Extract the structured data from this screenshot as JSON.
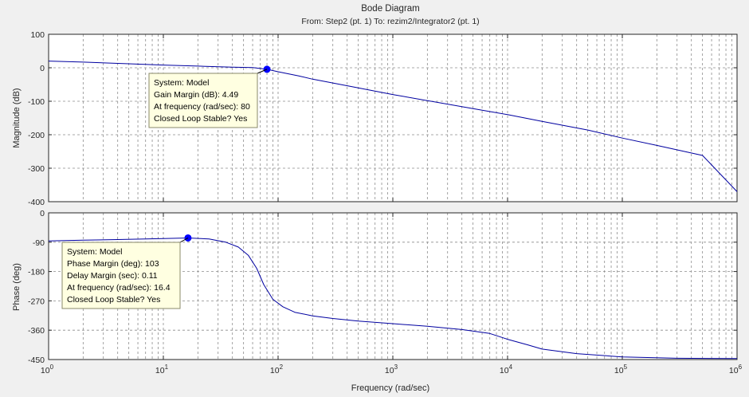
{
  "figure": {
    "title": "Bode Diagram",
    "subtitle": "From: Step2 (pt. 1)  To: rezim2/Integrator2 (pt. 1)",
    "xlabel": "Frequency  (rad/sec)",
    "x_ticks": [
      {
        "base": "10",
        "exp": "0",
        "value": 1
      },
      {
        "base": "10",
        "exp": "1",
        "value": 10
      },
      {
        "base": "10",
        "exp": "2",
        "value": 100
      },
      {
        "base": "10",
        "exp": "3",
        "value": 1000
      },
      {
        "base": "10",
        "exp": "4",
        "value": 10000
      },
      {
        "base": "10",
        "exp": "5",
        "value": 100000
      },
      {
        "base": "10",
        "exp": "6",
        "value": 1000000
      }
    ]
  },
  "colors": {
    "line": "#0000a0",
    "marker": "#0000ff",
    "grid": "#8c8c8c",
    "axes_bg": "#ffffff",
    "fig_bg": "#f0f0f0",
    "tooltip_bg": "#ffffe1"
  },
  "chart_data": [
    {
      "type": "line",
      "ylabel": "Magnitude (dB)",
      "xscale": "log",
      "xlim": [
        1,
        1000000
      ],
      "ylim": [
        -400,
        100
      ],
      "yticks": [
        100,
        0,
        -100,
        -200,
        -300,
        -400
      ],
      "ytick_labels": [
        "100",
        "0",
        "-100",
        "-200",
        "-300",
        "-400"
      ],
      "grid": true,
      "series": [
        {
          "x": [
            1,
            2,
            5,
            10,
            20,
            40,
            60,
            80,
            100,
            150,
            200,
            500,
            1000,
            2000,
            5000,
            10000,
            20000,
            50000,
            100000,
            200000,
            500000,
            1000000
          ],
          "y": [
            20,
            17,
            12,
            8,
            5,
            2,
            0.5,
            -4.49,
            -12,
            -24,
            -34,
            -60,
            -80,
            -98,
            -122,
            -140,
            -160,
            -186,
            -210,
            -232,
            -262,
            -370
          ]
        }
      ],
      "marker": {
        "x": 80,
        "y": -4.49
      },
      "tooltip": {
        "lines": [
          "System: Model",
          "Gain Margin (dB): 4.49",
          "At frequency (rad/sec): 80",
          "Closed Loop Stable? Yes"
        ]
      }
    },
    {
      "type": "line",
      "ylabel": "Phase (deg)",
      "xscale": "log",
      "xlim": [
        1,
        1000000
      ],
      "ylim": [
        -450,
        0
      ],
      "yticks": [
        0,
        -90,
        -180,
        -270,
        -360,
        -450
      ],
      "ytick_labels": [
        "0",
        "-90",
        "-180",
        "-270",
        "-360",
        "-450"
      ],
      "grid": true,
      "series": [
        {
          "x": [
            1,
            2,
            4,
            7,
            10,
            16.4,
            25,
            35,
            45,
            55,
            65,
            75,
            90,
            110,
            140,
            200,
            300,
            500,
            1000,
            2000,
            4000,
            7000,
            10000,
            15000,
            20000,
            40000,
            100000,
            300000,
            1000000
          ],
          "y": [
            -86,
            -84,
            -82,
            -80,
            -79,
            -77,
            -80,
            -90,
            -105,
            -130,
            -170,
            -220,
            -265,
            -288,
            -305,
            -316,
            -324,
            -332,
            -340,
            -348,
            -358,
            -370,
            -388,
            -405,
            -418,
            -432,
            -442,
            -446,
            -447
          ]
        }
      ],
      "marker": {
        "x": 16.4,
        "y": -77
      },
      "tooltip": {
        "lines": [
          "System: Model",
          "Phase Margin (deg): 103",
          "Delay Margin (sec): 0.11",
          "At frequency (rad/sec): 16.4",
          "Closed Loop Stable? Yes"
        ]
      }
    }
  ]
}
